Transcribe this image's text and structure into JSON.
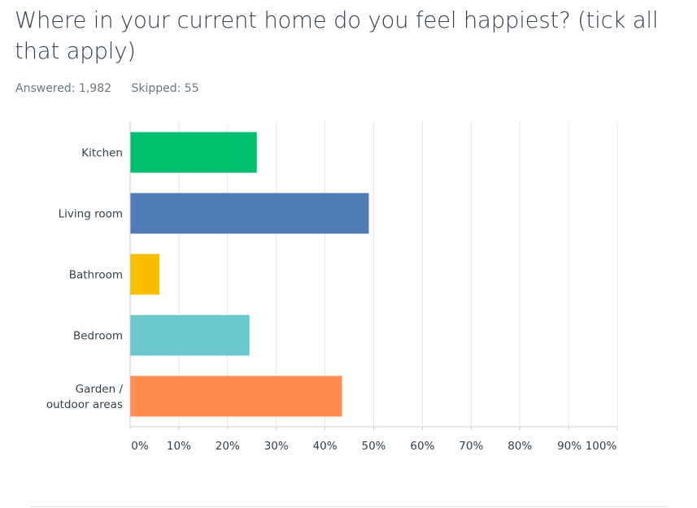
{
  "question": {
    "title": "Where in your current home do you feel happiest? (tick all that apply)",
    "answered": "Answered: 1,982",
    "skipped": "Skipped: 55"
  },
  "chart_data": {
    "type": "bar",
    "orientation": "horizontal",
    "categories": [
      [
        "Kitchen"
      ],
      [
        "Living room"
      ],
      [
        "Bathroom"
      ],
      [
        "Bedroom"
      ],
      [
        "Garden /",
        "outdoor areas"
      ]
    ],
    "values": [
      26,
      49,
      6,
      24.5,
      43.5
    ],
    "colors": [
      "#00bf6f",
      "#507cb6",
      "#f9be00",
      "#6bc8cd",
      "#ff8b4f"
    ],
    "xlim": [
      0,
      100
    ],
    "xticks": [
      "0%",
      "10%",
      "20%",
      "30%",
      "40%",
      "50%",
      "60%",
      "70%",
      "80%",
      "90%",
      "100%"
    ],
    "grid": true
  }
}
